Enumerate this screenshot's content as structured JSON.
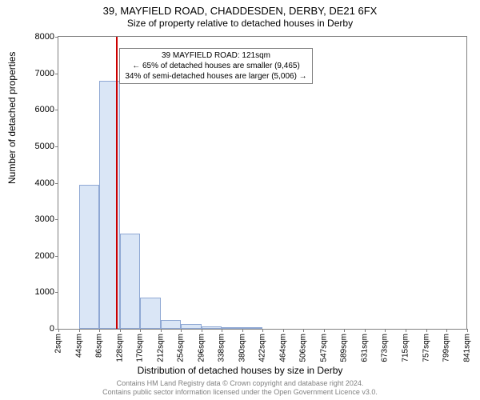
{
  "chart": {
    "type": "histogram",
    "title_main": "39, MAYFIELD ROAD, CHADDESDEN, DERBY, DE21 6FX",
    "title_sub": "Size of property relative to detached houses in Derby",
    "y_axis_label": "Number of detached properties",
    "x_axis_label": "Distribution of detached houses by size in Derby",
    "ylim": [
      0,
      8000
    ],
    "ytick_step": 1000,
    "y_ticks": [
      0,
      1000,
      2000,
      3000,
      4000,
      5000,
      6000,
      7000,
      8000
    ],
    "x_ticks": [
      "2sqm",
      "44sqm",
      "86sqm",
      "128sqm",
      "170sqm",
      "212sqm",
      "254sqm",
      "296sqm",
      "338sqm",
      "380sqm",
      "422sqm",
      "464sqm",
      "506sqm",
      "547sqm",
      "589sqm",
      "631sqm",
      "673sqm",
      "715sqm",
      "757sqm",
      "799sqm",
      "841sqm"
    ],
    "x_tick_step_sqm": 42,
    "x_range_sqm": [
      2,
      841
    ],
    "bars": [
      {
        "x_start_sqm": 44,
        "x_end_sqm": 86,
        "value": 3950
      },
      {
        "x_start_sqm": 86,
        "x_end_sqm": 128,
        "value": 6800
      },
      {
        "x_start_sqm": 128,
        "x_end_sqm": 170,
        "value": 2600
      },
      {
        "x_start_sqm": 170,
        "x_end_sqm": 212,
        "value": 850
      },
      {
        "x_start_sqm": 212,
        "x_end_sqm": 254,
        "value": 250
      },
      {
        "x_start_sqm": 254,
        "x_end_sqm": 296,
        "value": 130
      },
      {
        "x_start_sqm": 296,
        "x_end_sqm": 338,
        "value": 70
      },
      {
        "x_start_sqm": 338,
        "x_end_sqm": 380,
        "value": 40
      },
      {
        "x_start_sqm": 380,
        "x_end_sqm": 422,
        "value": 20
      }
    ],
    "marker_line_sqm": 121,
    "bar_fill": "#dae6f6",
    "bar_border": "#8fa8d4",
    "marker_color": "#cc0000",
    "axis_color": "#808080",
    "background_color": "#ffffff",
    "annotation": {
      "lines": [
        "39 MAYFIELD ROAD: 121sqm",
        "← 65% of detached houses are smaller (9,465)",
        "34% of semi-detached houses are larger (5,006) →"
      ],
      "left_sqm": 121,
      "top_value": 7700
    },
    "footer_line1": "Contains HM Land Registry data © Crown copyright and database right 2024.",
    "footer_line2": "Contains public sector information licensed under the Open Government Licence v3.0.",
    "title_fontsize": 13,
    "subtitle_fontsize": 12,
    "label_fontsize": 12,
    "tick_fontsize": 10,
    "annotation_fontsize": 10,
    "footer_fontsize": 9
  }
}
